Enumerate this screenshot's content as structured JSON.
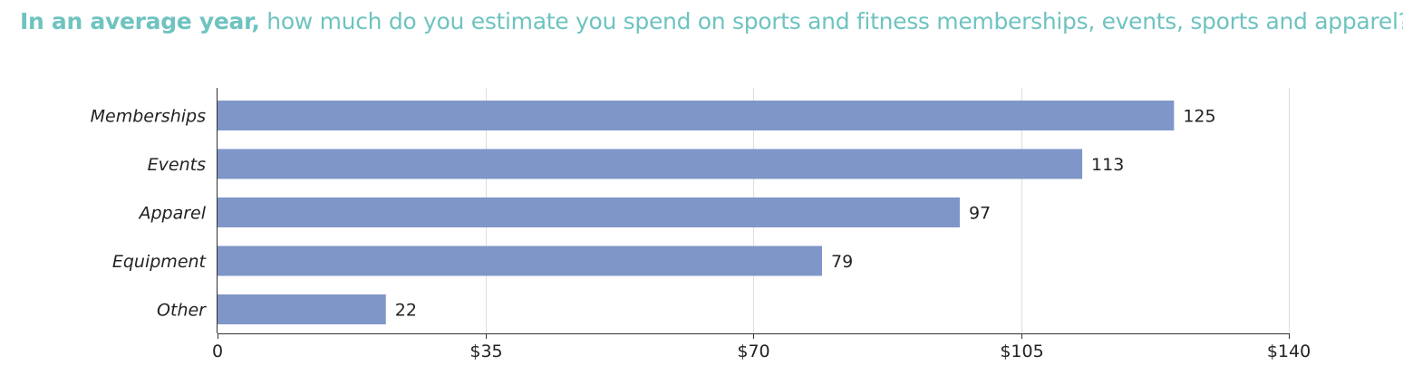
{
  "title": {
    "bold_part": "In an average year,",
    "rest": " how much do you estimate you spend on sports and fitness memberships, events, sports and apparel?"
  },
  "colors": {
    "title": "#6fc3c0",
    "bar": "#7f96c8",
    "grid": "#dddddd",
    "axis": "#333333"
  },
  "chart_data": {
    "type": "bar",
    "orientation": "horizontal",
    "title": "In an average year, how much do you estimate you spend on sports and fitness memberships, events, sports and apparel?",
    "categories": [
      "Memberships",
      "Events",
      "Apparel",
      "Equipment",
      "Other"
    ],
    "values": [
      125,
      113,
      97,
      79,
      22
    ],
    "data_labels": [
      "125",
      "113",
      "97",
      "79",
      "22"
    ],
    "xlim": [
      0,
      140
    ],
    "x_ticks": [
      0,
      35,
      70,
      105,
      140
    ],
    "x_tick_labels": [
      "0",
      "$35",
      "$70",
      "$105",
      "$140"
    ],
    "xlabel": "",
    "ylabel": "",
    "grid": true,
    "legend": "none"
  }
}
